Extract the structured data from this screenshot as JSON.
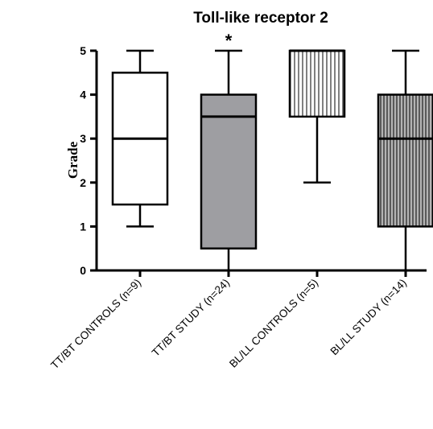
{
  "chart_data": {
    "type": "box",
    "title": "Toll-like receptor 2",
    "ylabel": "Grade",
    "xlabel": "",
    "ylim": [
      0,
      5
    ],
    "yticks": [
      "0",
      "1",
      "2",
      "3",
      "4",
      "5"
    ],
    "grid": false,
    "categories": [
      "TT/BT CONTROLS (n=9)",
      "TT/BT STUDY (n=24)",
      "BL/LL CONTROLS (n=5)",
      "BL/LL STUDY (n=14)"
    ],
    "boxes": [
      {
        "min": 1,
        "q1": 1.5,
        "median": 3,
        "q3": 4.5,
        "max": 5,
        "fill": "white"
      },
      {
        "min": 0,
        "q1": 0.5,
        "median": 3.5,
        "q3": 4,
        "max": 5,
        "fill": "gray"
      },
      {
        "min": 2,
        "q1": 3.5,
        "median": 5,
        "q3": 5,
        "max": 5,
        "fill": "vertical-stripes-light"
      },
      {
        "min": 0,
        "q1": 1,
        "median": 3,
        "q3": 4,
        "max": 5,
        "fill": "vertical-stripes-dense"
      }
    ],
    "annotations": [
      {
        "category": "TT/BT STUDY (n=24)",
        "text": "*"
      }
    ],
    "colors": {
      "line": "#000000",
      "gray_fill": "#9e9ea2",
      "stripe_fill": "#b4b4b4"
    }
  }
}
